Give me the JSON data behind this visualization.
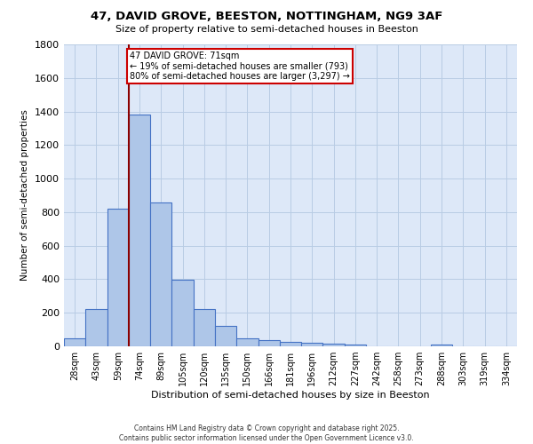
{
  "title_line1": "47, DAVID GROVE, BEESTON, NOTTINGHAM, NG9 3AF",
  "title_line2": "Size of property relative to semi-detached houses in Beeston",
  "xlabel": "Distribution of semi-detached houses by size in Beeston",
  "ylabel": "Number of semi-detached properties",
  "categories": [
    "28sqm",
    "43sqm",
    "59sqm",
    "74sqm",
    "89sqm",
    "105sqm",
    "120sqm",
    "135sqm",
    "150sqm",
    "166sqm",
    "181sqm",
    "196sqm",
    "212sqm",
    "227sqm",
    "242sqm",
    "258sqm",
    "273sqm",
    "288sqm",
    "303sqm",
    "319sqm",
    "334sqm"
  ],
  "values": [
    50,
    220,
    820,
    1380,
    860,
    395,
    220,
    120,
    50,
    35,
    25,
    20,
    15,
    10,
    0,
    0,
    0,
    10,
    0,
    0,
    0
  ],
  "bar_color": "#aec6e8",
  "bar_edge_color": "#4472c4",
  "property_line_x": 3,
  "property_line_color": "#8b0000",
  "annotation_text": "47 DAVID GROVE: 71sqm\n← 19% of semi-detached houses are smaller (793)\n80% of semi-detached houses are larger (3,297) →",
  "annotation_box_color": "#ffffff",
  "annotation_box_edge_color": "#cc0000",
  "ylim": [
    0,
    1800
  ],
  "yticks": [
    0,
    200,
    400,
    600,
    800,
    1000,
    1200,
    1400,
    1600,
    1800
  ],
  "background_color": "#dde8f8",
  "footer_line1": "Contains HM Land Registry data © Crown copyright and database right 2025.",
  "footer_line2": "Contains public sector information licensed under the Open Government Licence v3.0."
}
